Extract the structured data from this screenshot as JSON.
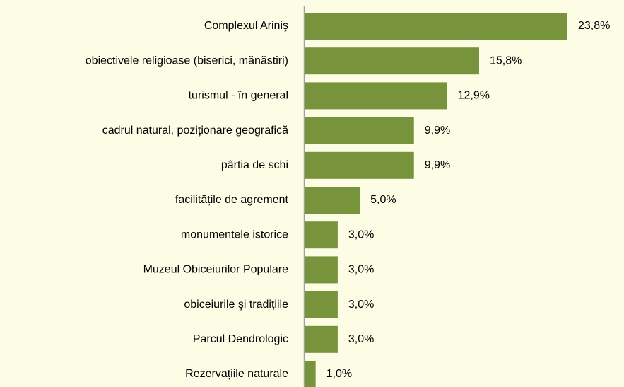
{
  "chart_data": {
    "type": "hbar",
    "categories": [
      "Complexul Ariniş",
      "obiectivele religioase (biserici, mănăstiri)",
      "turismul - în general",
      "cadrul natural, poziționare geografică",
      "pârtia de schi",
      "facilitățile de agrement",
      "monumentele istorice",
      "Muzeul Obiceiurilor Populare",
      "obiceiurile şi tradițiile",
      "Parcul Dendrologic",
      "Rezervațiile naturale"
    ],
    "values": [
      23.8,
      15.8,
      12.9,
      9.9,
      9.9,
      5.0,
      3.0,
      3.0,
      3.0,
      3.0,
      1.0
    ],
    "value_labels": [
      "23,8%",
      "15,8%",
      "12,9%",
      "9,9%",
      "9,9%",
      "5,0%",
      "3,0%",
      "3,0%",
      "3,0%",
      "3,0%",
      "1,0%"
    ],
    "color": "#77933c"
  }
}
